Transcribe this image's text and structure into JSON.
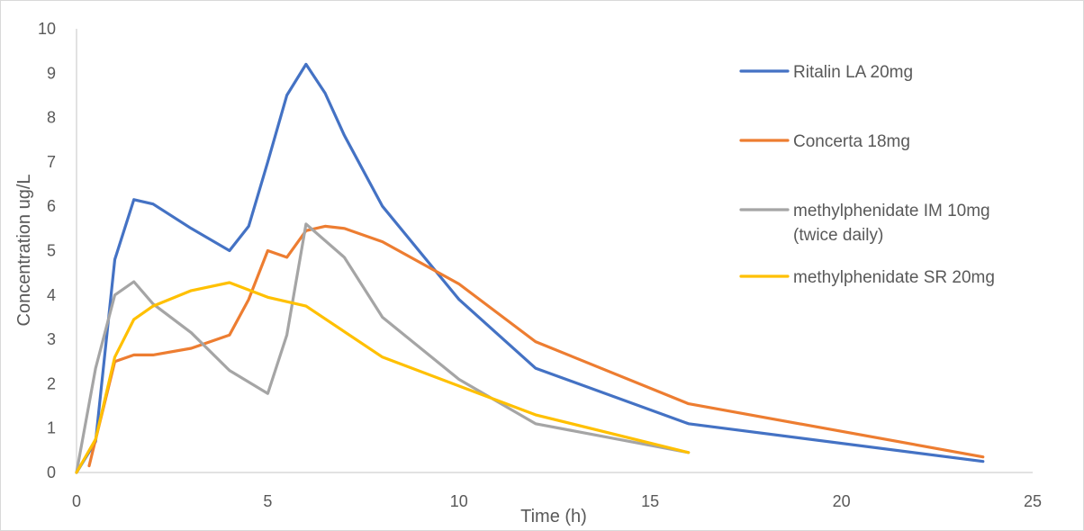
{
  "chart_data": {
    "type": "line",
    "title": "",
    "xlabel": "Time (h)",
    "ylabel": "Concentration ug/L",
    "xlim": [
      0,
      25
    ],
    "ylim": [
      0,
      10
    ],
    "xticks": [
      0,
      5,
      10,
      15,
      20,
      25
    ],
    "yticks": [
      0,
      1,
      2,
      3,
      4,
      5,
      6,
      7,
      8,
      9,
      10
    ],
    "grid": false,
    "legend_position": "right",
    "series": [
      {
        "name": "Ritalin LA 20mg",
        "color": "#4472C4",
        "x": [
          0,
          0.5,
          1,
          1.5,
          2,
          3,
          4,
          4.5,
          5,
          5.5,
          6,
          6.5,
          7,
          8,
          10,
          12,
          16,
          23.7
        ],
        "y": [
          0,
          0.7,
          4.8,
          6.15,
          6.05,
          5.5,
          5.0,
          5.55,
          7.0,
          8.5,
          9.2,
          8.55,
          7.6,
          6.0,
          3.9,
          2.35,
          1.1,
          0.25
        ]
      },
      {
        "name": "Concerta 18mg",
        "color": "#ED7D31",
        "x": [
          0.33,
          1,
          1.5,
          2,
          3,
          4,
          4.5,
          5,
          5.5,
          6,
          6.5,
          7,
          8,
          10,
          12,
          16,
          23.7
        ],
        "y": [
          0.15,
          2.5,
          2.65,
          2.65,
          2.8,
          3.1,
          3.9,
          5.0,
          4.85,
          5.45,
          5.55,
          5.5,
          5.2,
          4.25,
          2.95,
          1.55,
          0.35
        ]
      },
      {
        "name": "methylphenidate IM 10mg (twice daily)",
        "name_lines": [
          "methylphenidate IM 10mg",
          "(twice daily)"
        ],
        "color": "#A5A5A5",
        "x": [
          0,
          0.5,
          1,
          1.5,
          2,
          3,
          4,
          5,
          5.5,
          6,
          7,
          8,
          10,
          12,
          16
        ],
        "y": [
          0,
          2.35,
          4.0,
          4.3,
          3.8,
          3.15,
          2.3,
          1.78,
          3.1,
          5.6,
          4.85,
          3.5,
          2.1,
          1.1,
          0.45
        ]
      },
      {
        "name": "methylphenidate SR 20mg",
        "color": "#FFC000",
        "x": [
          0,
          0.5,
          1,
          1.5,
          2,
          3,
          4,
          5,
          6,
          8,
          10,
          12,
          16
        ],
        "y": [
          0,
          0.75,
          2.6,
          3.45,
          3.75,
          4.1,
          4.28,
          3.95,
          3.75,
          2.6,
          1.95,
          1.3,
          0.45
        ]
      }
    ]
  }
}
